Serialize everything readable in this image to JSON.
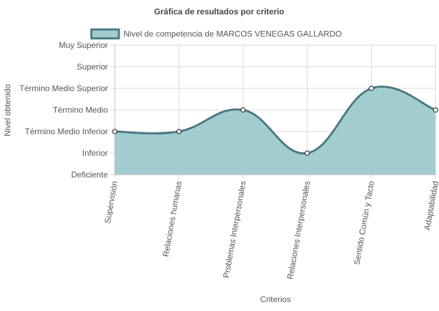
{
  "chart_data": {
    "type": "line",
    "title": "Gráfica de resultados por criterio",
    "xlabel": "Criterios",
    "ylabel": "Nivel obtenido",
    "y_levels": [
      "Deficiente",
      "Inferior",
      "Término Medio Inferior",
      "Término Medio",
      "Término Medio Superior",
      "Superior",
      "Muy Superior"
    ],
    "ylim": [
      0,
      6
    ],
    "categories": [
      "Supervisión",
      "Relaciones humanas",
      "Problemas Interpersonales",
      "Relaciones Interpersonales",
      "Sentido Común y Tacto",
      "Adaptabilidad"
    ],
    "series": [
      {
        "name": "Nivel de competencia de MARCOS VENEGAS GALLARDO",
        "values": [
          2,
          2,
          3,
          1,
          4,
          3
        ],
        "value_labels": [
          "Término Medio Inferior",
          "Término Medio Inferior",
          "Término Medio",
          "Inferior",
          "Término Medio Superior",
          "Término Medio"
        ]
      }
    ],
    "fill": true,
    "smooth": true,
    "grid": true,
    "legend_position": "top",
    "colors": {
      "line": "#4a7880",
      "fill": "#a2cdd0",
      "point_fill": "#ffffff",
      "point_stroke": "#2b2b2b",
      "grid": "#d9d9d9",
      "text": "#555555",
      "title": "#444444"
    }
  }
}
